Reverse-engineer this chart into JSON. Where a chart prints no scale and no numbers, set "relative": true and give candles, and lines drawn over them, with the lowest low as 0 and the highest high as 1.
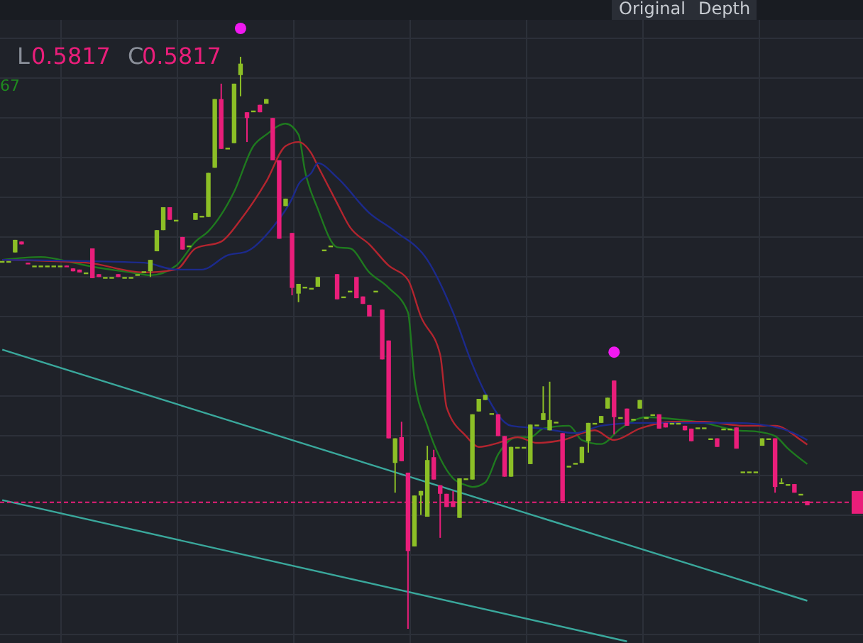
{
  "chart_data": {
    "type": "candlestick",
    "relative": true,
    "grid": true,
    "annotations": [
      "L",
      "0.5817",
      "C",
      "0.5817",
      "67",
      "Original",
      "Depth"
    ],
    "categories": [
      null,
      null,
      null,
      null,
      null,
      null,
      null,
      null,
      null,
      null,
      null,
      null,
      null,
      null,
      null,
      null,
      null,
      null,
      null,
      null,
      null,
      null,
      null,
      null,
      null,
      null,
      null,
      null,
      null,
      null,
      null,
      null,
      null,
      null,
      null,
      null,
      null,
      null,
      null,
      null,
      null,
      null,
      null,
      null,
      null,
      null,
      null,
      null,
      null,
      null,
      null,
      null,
      null,
      null,
      null,
      null,
      null,
      null,
      null,
      null,
      null,
      null,
      null,
      null,
      null,
      null,
      null,
      null,
      null,
      null,
      null,
      null,
      null,
      null,
      null,
      null,
      null,
      null,
      null,
      null,
      null,
      null,
      null,
      null,
      null,
      null,
      null,
      null,
      null,
      null,
      null,
      null,
      null,
      null,
      null,
      null,
      null,
      null,
      null,
      null,
      null,
      null,
      null,
      null,
      null,
      null,
      null,
      null,
      null,
      null,
      null,
      null,
      null,
      null,
      null,
      null,
      null,
      null,
      null,
      null,
      null,
      null,
      null,
      null,
      null,
      null
    ],
    "ohlc": [
      [
        0.643,
        0.643,
        0.643,
        0.643
      ],
      [
        0.643,
        0.643,
        0.643,
        0.643
      ],
      [
        0.658,
        0.68,
        0.658,
        0.68
      ],
      [
        0.677,
        0.677,
        0.672,
        0.672
      ],
      [
        0.64,
        0.64,
        0.638,
        0.638
      ],
      [
        0.635,
        0.635,
        0.635,
        0.635
      ],
      [
        0.635,
        0.635,
        0.635,
        0.635
      ],
      [
        0.635,
        0.635,
        0.635,
        0.635
      ],
      [
        0.635,
        0.635,
        0.635,
        0.635
      ],
      [
        0.635,
        0.635,
        0.635,
        0.635
      ],
      [
        0.635,
        0.635,
        0.633,
        0.633
      ],
      [
        0.63,
        0.63,
        0.625,
        0.625
      ],
      [
        0.628,
        0.628,
        0.623,
        0.623
      ],
      [
        0.623,
        0.623,
        0.623,
        0.623
      ],
      [
        0.665,
        0.665,
        0.613,
        0.613
      ],
      [
        0.62,
        0.62,
        0.615,
        0.615
      ],
      [
        0.615,
        0.615,
        0.615,
        0.615
      ],
      [
        0.615,
        0.615,
        0.615,
        0.615
      ],
      [
        0.62,
        0.62,
        0.615,
        0.615
      ],
      [
        0.615,
        0.615,
        0.615,
        0.615
      ],
      [
        0.615,
        0.615,
        0.615,
        0.615
      ],
      [
        0.62,
        0.62,
        0.62,
        0.62
      ],
      [
        0.625,
        0.625,
        0.625,
        0.625
      ],
      [
        0.625,
        0.645,
        0.615,
        0.645
      ],
      [
        0.66,
        0.697,
        0.66,
        0.697
      ],
      [
        0.697,
        0.737,
        0.697,
        0.737
      ],
      [
        0.737,
        0.737,
        0.715,
        0.715
      ],
      [
        0.715,
        0.715,
        0.715,
        0.715
      ],
      [
        0.685,
        0.685,
        0.663,
        0.663
      ],
      [
        0.67,
        0.67,
        0.67,
        0.67
      ],
      [
        0.715,
        0.727,
        0.715,
        0.727
      ],
      [
        0.722,
        0.722,
        0.722,
        0.722
      ],
      [
        0.72,
        0.797,
        0.72,
        0.797
      ],
      [
        0.806,
        0.926,
        0.806,
        0.926
      ],
      [
        0.926,
        0.953,
        0.839,
        0.839
      ],
      [
        0.841,
        0.841,
        0.841,
        0.841
      ],
      [
        0.849,
        0.953,
        0.849,
        0.953
      ],
      [
        0.968,
        1.0,
        0.931,
        0.988
      ],
      [
        0.903,
        0.903,
        0.851,
        0.893
      ],
      [
        0.906,
        0.906,
        0.906,
        0.906
      ],
      [
        0.916,
        0.916,
        0.903,
        0.903
      ],
      [
        0.918,
        0.926,
        0.918,
        0.926
      ],
      [
        0.893,
        0.893,
        0.819,
        0.819
      ],
      [
        0.819,
        0.819,
        0.682,
        0.682
      ],
      [
        0.739,
        0.752,
        0.739,
        0.752
      ],
      [
        0.692,
        0.692,
        0.583,
        0.596
      ],
      [
        0.586,
        0.603,
        0.571,
        0.603
      ],
      [
        0.598,
        0.598,
        0.598,
        0.598
      ],
      [
        0.596,
        0.596,
        0.596,
        0.596
      ],
      [
        0.598,
        0.615,
        0.598,
        0.615
      ],
      [
        0.663,
        0.663,
        0.663,
        0.663
      ],
      [
        0.67,
        0.67,
        0.67,
        0.67
      ],
      [
        0.62,
        0.62,
        0.576,
        0.576
      ],
      [
        0.581,
        0.581,
        0.581,
        0.581
      ],
      [
        0.591,
        0.591,
        0.591,
        0.591
      ],
      [
        0.615,
        0.615,
        0.578,
        0.578
      ],
      [
        0.581,
        0.581,
        0.568,
        0.568
      ],
      [
        0.566,
        0.566,
        0.546,
        0.546
      ],
      [
        0.591,
        0.591,
        0.591,
        0.591
      ],
      [
        0.558,
        0.558,
        0.471,
        0.471
      ],
      [
        0.504,
        0.504,
        0.333,
        0.333
      ],
      [
        0.29,
        0.333,
        0.238,
        0.333
      ],
      [
        0.335,
        0.362,
        0.293,
        0.293
      ],
      [
        0.273,
        0.273,
        0,
        0.136
      ],
      [
        0.144,
        0.233,
        0.144,
        0.233
      ],
      [
        0.233,
        0.241,
        0.199,
        0.241
      ],
      [
        0.196,
        0.32,
        0.196,
        0.295
      ],
      [
        0.3,
        0.313,
        0.261,
        0.261
      ],
      [
        0.251,
        0.251,
        0.159,
        0.236
      ],
      [
        0.236,
        0.236,
        0.213,
        0.213
      ],
      [
        0.223,
        0.241,
        0.213,
        0.213
      ],
      [
        0.194,
        0.263,
        0.194,
        0.263
      ],
      [
        0.263,
        0.263,
        0.263,
        0.263
      ],
      [
        0.261,
        0.375,
        0.261,
        0.375
      ],
      [
        0.38,
        0.402,
        0.38,
        0.402
      ],
      [
        0.4,
        0.409,
        0.4,
        0.409
      ],
      [
        0.377,
        0.377,
        0.377,
        0.377
      ],
      [
        0.375,
        0.375,
        0.337,
        0.337
      ],
      [
        0.337,
        0.337,
        0.266,
        0.266
      ],
      [
        0.266,
        0.318,
        0.266,
        0.318
      ],
      [
        0.318,
        0.318,
        0.318,
        0.318
      ],
      [
        0.318,
        0.318,
        0.318,
        0.318
      ],
      [
        0.288,
        0.357,
        0.288,
        0.357
      ],
      [
        0.357,
        0.357,
        0.357,
        0.357
      ],
      [
        0.365,
        0.424,
        0.365,
        0.377
      ],
      [
        0.347,
        0.432,
        0.347,
        0.365
      ],
      [
        0.362,
        0.362,
        0.362,
        0.362
      ],
      [
        0.342,
        0.342,
        0.223,
        0.223
      ],
      [
        0.285,
        0.285,
        0.285,
        0.285
      ],
      [
        0.29,
        0.29,
        0.29,
        0.29
      ],
      [
        0.29,
        0.318,
        0.29,
        0.318
      ],
      [
        0.328,
        0.36,
        0.308,
        0.36
      ],
      [
        0.36,
        0.36,
        0.36,
        0.36
      ],
      [
        0.36,
        0.372,
        0.36,
        0.372
      ],
      [
        0.385,
        0.404,
        0.385,
        0.404
      ],
      [
        0.434,
        0.434,
        0.34,
        0.37
      ],
      [
        0.37,
        0.37,
        0.37,
        0.37
      ],
      [
        0.385,
        0.385,
        0.355,
        0.355
      ],
      [
        0.367,
        0.367,
        0.367,
        0.367
      ],
      [
        0.385,
        0.4,
        0.385,
        0.4
      ],
      [
        0.37,
        0.37,
        0.37,
        0.37
      ],
      [
        0.375,
        0.375,
        0.375,
        0.375
      ],
      [
        0.375,
        0.375,
        0.35,
        0.35
      ],
      [
        0.36,
        0.36,
        0.352,
        0.352
      ],
      [
        0.36,
        0.36,
        0.36,
        0.36
      ],
      [
        0.36,
        0.36,
        0.36,
        0.36
      ],
      [
        0.355,
        0.355,
        0.347,
        0.347
      ],
      [
        0.35,
        0.35,
        0.328,
        0.328
      ],
      [
        0.352,
        0.352,
        0.352,
        0.352
      ],
      [
        0.352,
        0.352,
        0.352,
        0.352
      ],
      [
        0.333,
        0.333,
        0.333,
        0.333
      ],
      [
        0.333,
        0.333,
        0.318,
        0.318
      ],
      [
        0.35,
        0.35,
        0.35,
        0.35
      ],
      [
        0.35,
        0.35,
        0.35,
        0.35
      ],
      [
        0.352,
        0.352,
        0.315,
        0.315
      ],
      [
        0.275,
        0.275,
        0.275,
        0.275
      ],
      [
        0.275,
        0.275,
        0.275,
        0.275
      ],
      [
        0.275,
        0.275,
        0.275,
        0.275
      ],
      [
        0.32,
        0.333,
        0.32,
        0.333
      ],
      [
        0.333,
        0.333,
        0.333,
        0.333
      ],
      [
        0.333,
        0.333,
        0.238,
        0.248
      ],
      [
        0.256,
        0.263,
        0.256,
        0.256
      ],
      [
        0.253,
        0.253,
        0.253,
        0.253
      ],
      [
        0.253,
        0.253,
        0.238,
        0.238
      ],
      [
        0.236,
        0.236,
        0.236,
        0.236
      ],
      [
        0.223,
        0.223,
        0.216,
        0.216
      ]
    ],
    "colors": [
      "#8cbf26",
      "#8cbf26",
      "#8cbf26",
      "#e91e7a",
      "#e91e7a",
      "#8cbf26",
      "#8cbf26",
      "#8cbf26",
      "#8cbf26",
      "#8cbf26",
      "#e91e7a",
      "#e91e7a",
      "#e91e7a",
      "#8cbf26",
      "#e91e7a",
      "#e91e7a",
      "#8cbf26",
      "#8cbf26",
      "#e91e7a",
      "#8cbf26",
      "#8cbf26",
      "#8cbf26",
      "#8cbf26",
      "#8cbf26",
      "#8cbf26",
      "#8cbf26",
      "#e91e7a",
      "#8cbf26",
      "#e91e7a",
      "#8cbf26",
      "#8cbf26",
      "#8cbf26",
      "#8cbf26",
      "#8cbf26",
      "#e91e7a",
      "#8cbf26",
      "#8cbf26",
      "#8cbf26",
      "#e91e7a",
      "#8cbf26",
      "#e91e7a",
      "#8cbf26",
      "#e91e7a",
      "#e91e7a",
      "#8cbf26",
      "#e91e7a",
      "#8cbf26",
      "#8cbf26",
      "#8cbf26",
      "#8cbf26",
      "#8cbf26",
      "#8cbf26",
      "#e91e7a",
      "#8cbf26",
      "#8cbf26",
      "#e91e7a",
      "#e91e7a",
      "#e91e7a",
      "#8cbf26",
      "#e91e7a",
      "#e91e7a",
      "#8cbf26",
      "#e91e7a",
      "#e91e7a",
      "#8cbf26",
      "#8cbf26",
      "#8cbf26",
      "#e91e7a",
      "#e91e7a",
      "#e91e7a",
      "#e91e7a",
      "#8cbf26",
      "#8cbf26",
      "#8cbf26",
      "#8cbf26",
      "#8cbf26",
      "#8cbf26",
      "#e91e7a",
      "#e91e7a",
      "#8cbf26",
      "#8cbf26",
      "#8cbf26",
      "#8cbf26",
      "#8cbf26",
      "#8cbf26",
      "#8cbf26",
      "#8cbf26",
      "#e91e7a",
      "#8cbf26",
      "#8cbf26",
      "#8cbf26",
      "#8cbf26",
      "#8cbf26",
      "#8cbf26",
      "#8cbf26",
      "#e91e7a",
      "#8cbf26",
      "#e91e7a",
      "#8cbf26",
      "#8cbf26",
      "#8cbf26",
      "#8cbf26",
      "#e91e7a",
      "#e91e7a",
      "#8cbf26",
      "#8cbf26",
      "#e91e7a",
      "#e91e7a",
      "#8cbf26",
      "#8cbf26",
      "#8cbf26",
      "#e91e7a",
      "#8cbf26",
      "#8cbf26",
      "#e91e7a",
      "#8cbf26",
      "#8cbf26",
      "#8cbf26",
      "#8cbf26",
      "#8cbf26",
      "#e91e7a",
      "#8cbf26",
      "#8cbf26",
      "#e91e7a",
      "#8cbf26",
      "#e91e7a"
    ],
    "series": [
      {
        "type": "line",
        "color": "#1f7a1f",
        "values": [
          0.645,
          null,
          null,
          null,
          null,
          null,
          0.65,
          null,
          null,
          null,
          null,
          0.64,
          null,
          null,
          0.633,
          null,
          null,
          null,
          null,
          null,
          0.623,
          null,
          null,
          0.618,
          null,
          null,
          null,
          0.635,
          null,
          null,
          0.677,
          null,
          0.695,
          null,
          null,
          null,
          0.764,
          null,
          null,
          0.844,
          null,
          0.864,
          null,
          null,
          0.883,
          null,
          0.864,
          0.801,
          null,
          0.734,
          null,
          null,
          0.667,
          null,
          0.665,
          null,
          null,
          0.623,
          null,
          null,
          0.596,
          null,
          null,
          0.553,
          0.437,
          null,
          0.355,
          null,
          0.298,
          null,
          0.263,
          null,
          0.251,
          0.248,
          null,
          0.256,
          null,
          0.305,
          null,
          null,
          0.335,
          null,
          0.335,
          null,
          0.35,
          null,
          null,
          null,
          0.355,
          null,
          0.33,
          null,
          null,
          0.323,
          null,
          null,
          0.35,
          null,
          null,
          null,
          0.37,
          null,
          null,
          null,
          0.367,
          null,
          null,
          null,
          null,
          0.36,
          null,
          null,
          null,
          null,
          0.347,
          null,
          null,
          0.345,
          null,
          null,
          0.337,
          null,
          0.315,
          null,
          null,
          0.288
        ]
      },
      {
        "type": "line",
        "color": "#b3252f",
        "values": [
          0.645,
          null,
          null,
          null,
          null,
          null,
          null,
          null,
          null,
          null,
          null,
          null,
          null,
          0.64,
          null,
          null,
          null,
          null,
          null,
          null,
          null,
          null,
          0.623,
          null,
          null,
          null,
          null,
          0.628,
          null,
          null,
          0.665,
          null,
          null,
          null,
          0.677,
          null,
          null,
          0.715,
          null,
          null,
          null,
          0.782,
          null,
          null,
          0.844,
          null,
          0.851,
          null,
          0.831,
          0.809,
          null,
          null,
          0.744,
          null,
          0.702,
          null,
          null,
          0.672,
          null,
          null,
          0.635,
          null,
          null,
          0.61,
          null,
          0.546,
          null,
          null,
          0.479,
          0.387,
          null,
          null,
          0.337,
          null,
          0.318,
          null,
          null,
          0.325,
          null,
          null,
          0.335,
          null,
          null,
          0.325,
          null,
          null,
          null,
          0.33,
          null,
          null,
          null,
          null,
          0.347,
          null,
          null,
          0.33,
          null,
          null,
          null,
          0.35,
          null,
          null,
          null,
          null,
          0.362,
          null,
          null,
          null,
          null,
          0.362,
          null,
          null,
          null,
          null,
          null,
          0.355,
          null,
          null,
          null,
          null,
          0.355,
          null,
          null,
          null,
          0.33,
          0.322
        ]
      },
      {
        "type": "line",
        "color": "#1c2a8c",
        "values": [
          0.645,
          null,
          null,
          null,
          null,
          null,
          null,
          null,
          null,
          null,
          null,
          null,
          null,
          null,
          null,
          null,
          null,
          null,
          null,
          null,
          null,
          null,
          0.64,
          null,
          null,
          null,
          null,
          0.628,
          null,
          null,
          null,
          0.628,
          null,
          null,
          null,
          0.653,
          null,
          null,
          0.66,
          null,
          null,
          null,
          0.702,
          null,
          null,
          0.752,
          0.777,
          null,
          0.797,
          0.814,
          null,
          null,
          0.789,
          null,
          null,
          null,
          null,
          0.727,
          null,
          null,
          null,
          0.695,
          null,
          null,
          null,
          null,
          0.645,
          null,
          null,
          null,
          0.553,
          null,
          null,
          0.462,
          null,
          0.412,
          null,
          null,
          null,
          0.355,
          null,
          null,
          null,
          null,
          0.35,
          null,
          null,
          null,
          null,
          0.342,
          null,
          null,
          null,
          0.355,
          null,
          null,
          null,
          null,
          null,
          0.36,
          null,
          null,
          null,
          null,
          null,
          null,
          0.36,
          null,
          null,
          null,
          null,
          null,
          null,
          null,
          0.36,
          null,
          null,
          null,
          null,
          null,
          null,
          0.35,
          null,
          null,
          null,
          0.33
        ]
      },
      {
        "type": "line",
        "color": "#3aa89c",
        "values": [
          0.488,
          null,
          null,
          null,
          null,
          null,
          null,
          null,
          null,
          null,
          null,
          null,
          null,
          null,
          null,
          null,
          null,
          null,
          null,
          null,
          null,
          null,
          null,
          null,
          null,
          null,
          null,
          null,
          null,
          null,
          null,
          null,
          null,
          null,
          null,
          null,
          null,
          null,
          null,
          null,
          null,
          null,
          null,
          null,
          null,
          null,
          null,
          null,
          null,
          null,
          null,
          null,
          null,
          null,
          null,
          null,
          null,
          null,
          null,
          null,
          null,
          null,
          null,
          null,
          null,
          null,
          null,
          null,
          null,
          null,
          null,
          null,
          null,
          null,
          null,
          null,
          null,
          null,
          null,
          null,
          null,
          null,
          null,
          null,
          null,
          null,
          null,
          null,
          null,
          null,
          null,
          null,
          null,
          null,
          null,
          null,
          null,
          null,
          null,
          null,
          null,
          null,
          null,
          null,
          null,
          null,
          null,
          null,
          null,
          null,
          null,
          null,
          null,
          null,
          null,
          null,
          null,
          null,
          null,
          null,
          null,
          null,
          null,
          null,
          null,
          0.049
        ]
      },
      {
        "type": "line",
        "color": "#3aa89c",
        "values": [
          0.225,
          null,
          null,
          null,
          null,
          null,
          null,
          null,
          null,
          null,
          null,
          null,
          null,
          null,
          null,
          null,
          null,
          null,
          null,
          null,
          null,
          null,
          null,
          null,
          null,
          null,
          null,
          null,
          null,
          null,
          null,
          null,
          null,
          null,
          null,
          null,
          null,
          null,
          null,
          null,
          null,
          null,
          null,
          null,
          null,
          null,
          null,
          null,
          null,
          null,
          null,
          null,
          null,
          null,
          null,
          null,
          null,
          null,
          null,
          null,
          null,
          null,
          null,
          null,
          null,
          null,
          null,
          null,
          null,
          null,
          null,
          null,
          null,
          null,
          null,
          null,
          null,
          null,
          null,
          null,
          null,
          null,
          null,
          null,
          null,
          null,
          null,
          null,
          null,
          null,
          null,
          null,
          null,
          null,
          null,
          null,
          null,
          -0.022,
          null,
          null,
          null,
          null,
          null,
          null,
          null,
          null,
          null,
          null,
          null,
          null,
          null,
          null,
          null,
          null,
          null,
          null,
          null,
          null,
          null,
          null,
          null,
          null,
          null,
          null,
          null,
          null
        ]
      }
    ],
    "ref_lines": [
      {
        "axis": "y",
        "value": 0.221,
        "color": "#e91e7a",
        "line_style": "dashed"
      }
    ]
  }
}
